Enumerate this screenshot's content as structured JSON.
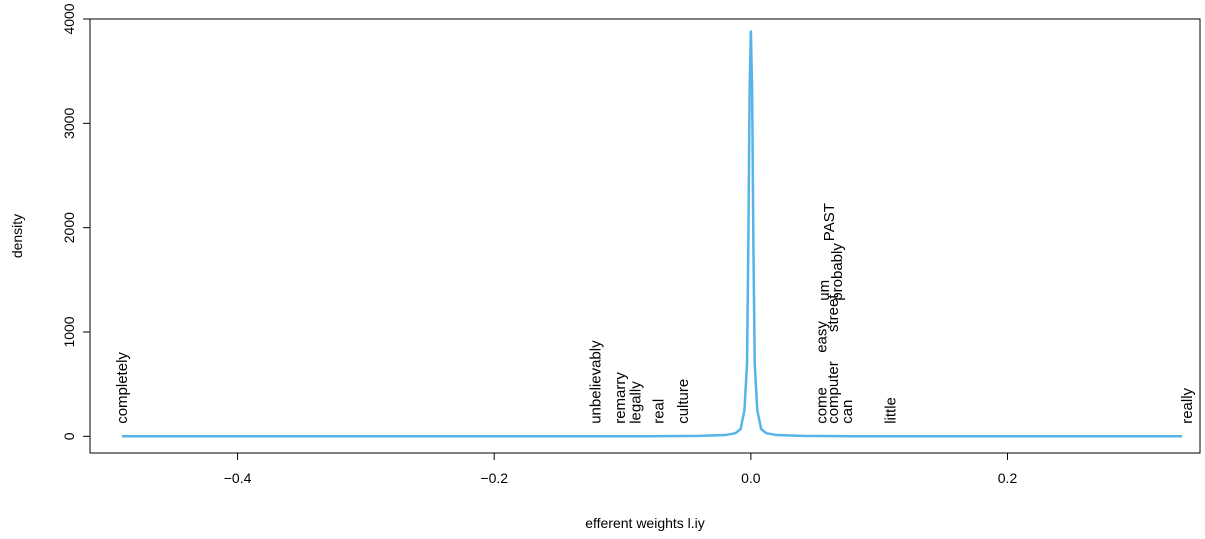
{
  "chart_data": {
    "type": "line",
    "xlabel": "efferent weights l.iy",
    "ylabel": "density",
    "xlim": [
      -0.515,
      0.35
    ],
    "ylim": [
      -160,
      4000
    ],
    "x_ticks": [
      -0.4,
      -0.2,
      0.0,
      0.2
    ],
    "x_tick_labels": [
      "−0.4",
      "−0.2",
      "0.0",
      "0.2"
    ],
    "y_ticks": [
      0,
      1000,
      2000,
      3000,
      4000
    ],
    "y_tick_labels": [
      "0",
      "1000",
      "2000",
      "3000",
      "4000"
    ],
    "grid": false,
    "line_color": "#56B4E9",
    "series": [
      {
        "x": [
          -0.49,
          -0.3,
          -0.15,
          -0.08,
          -0.04,
          -0.02,
          -0.012,
          -0.008,
          -0.005,
          -0.003,
          -0.002,
          -0.001,
          0.0,
          0.001,
          0.002,
          0.003,
          0.005,
          0.008,
          0.012,
          0.02,
          0.04,
          0.08,
          0.15,
          0.336
        ],
        "y": [
          0,
          0,
          0,
          1,
          4,
          12,
          30,
          70,
          250,
          700,
          1800,
          3300,
          3880,
          3300,
          1800,
          700,
          250,
          70,
          30,
          12,
          4,
          1,
          0,
          0
        ]
      }
    ],
    "word_labels": [
      {
        "text": "completely",
        "x": -0.49,
        "y": 120
      },
      {
        "text": "unbelievably",
        "x": -0.121,
        "y": 120
      },
      {
        "text": "remarry",
        "x": -0.102,
        "y": 120
      },
      {
        "text": "legally",
        "x": -0.09,
        "y": 120
      },
      {
        "text": "real",
        "x": -0.072,
        "y": 120
      },
      {
        "text": "culture",
        "x": -0.053,
        "y": 120
      },
      {
        "text": "come",
        "x": 0.055,
        "y": 120
      },
      {
        "text": "easy",
        "x": 0.055,
        "y": 800
      },
      {
        "text": "computer",
        "x": 0.064,
        "y": 120
      },
      {
        "text": "street",
        "x": 0.064,
        "y": 1000
      },
      {
        "text": "can",
        "x": 0.075,
        "y": 120
      },
      {
        "text": "um",
        "x": 0.057,
        "y": 1300
      },
      {
        "text": "probably",
        "x": 0.067,
        "y": 1300
      },
      {
        "text": "PAST",
        "x": 0.061,
        "y": 1870
      },
      {
        "text": "little",
        "x": 0.109,
        "y": 120
      },
      {
        "text": "really",
        "x": 0.34,
        "y": 120
      }
    ]
  }
}
